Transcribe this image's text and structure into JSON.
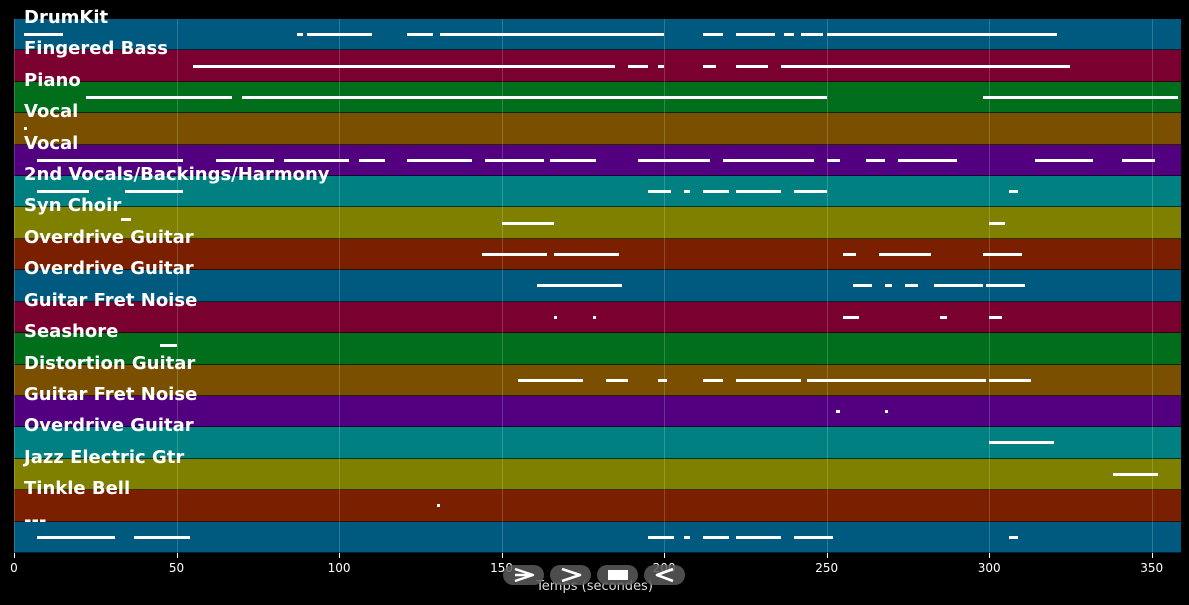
{
  "x_axis": {
    "label": "Temps (secondes)",
    "ticks": [
      "0",
      "50",
      "100",
      "150",
      "200",
      "250",
      "300",
      "350"
    ],
    "tick_values": [
      0,
      50,
      100,
      150,
      200,
      250,
      300,
      350
    ],
    "range": [
      0,
      359
    ]
  },
  "controls": [
    {
      "name": "play-from-start-button",
      "icon": "play-from-start-icon"
    },
    {
      "name": "play-button",
      "icon": "play-icon"
    },
    {
      "name": "stop-button",
      "icon": "stop-icon"
    },
    {
      "name": "rewind-button",
      "icon": "rewind-icon"
    }
  ],
  "tracks": [
    {
      "name": "DrumKit",
      "color": "#005a80",
      "notes": [
        [
          3,
          12
        ],
        [
          87,
          2
        ],
        [
          90,
          20
        ],
        [
          121,
          8
        ],
        [
          131,
          68
        ],
        [
          198,
          2
        ],
        [
          212,
          6
        ],
        [
          222,
          12
        ],
        [
          237,
          3
        ],
        [
          242,
          7
        ],
        [
          250,
          60
        ],
        [
          301,
          20
        ]
      ]
    },
    {
      "name": "Fingered Bass",
      "color": "#7a0030",
      "notes": [
        [
          55,
          60
        ],
        [
          115,
          15
        ],
        [
          130,
          55
        ],
        [
          189,
          6
        ],
        [
          198,
          2
        ],
        [
          212,
          4
        ],
        [
          222,
          10
        ],
        [
          236,
          40
        ],
        [
          276,
          44
        ],
        [
          315,
          10
        ]
      ]
    },
    {
      "name": "Piano",
      "color": "#006e1a",
      "notes": [
        [
          22,
          45
        ],
        [
          70,
          80
        ],
        [
          150,
          70
        ],
        [
          220,
          30
        ],
        [
          298,
          60
        ]
      ]
    },
    {
      "name": "Vocal",
      "color": "#7a5000",
      "notes": [
        [
          3,
          1
        ]
      ]
    },
    {
      "name": "Vocal",
      "color": "#520080",
      "notes": [
        [
          7,
          45
        ],
        [
          62,
          18
        ],
        [
          83,
          20
        ],
        [
          106,
          8
        ],
        [
          121,
          20
        ],
        [
          145,
          18
        ],
        [
          165,
          14
        ],
        [
          192,
          22
        ],
        [
          218,
          28
        ],
        [
          250,
          4
        ],
        [
          262,
          6
        ],
        [
          272,
          18
        ],
        [
          314,
          18
        ],
        [
          341,
          10
        ]
      ]
    },
    {
      "name": "2nd Vocals/Backings/Harmony",
      "color": "#008080",
      "notes": [
        [
          7,
          16
        ],
        [
          34,
          18
        ],
        [
          195,
          7
        ],
        [
          206,
          2
        ],
        [
          212,
          8
        ],
        [
          222,
          14
        ],
        [
          240,
          10
        ],
        [
          306,
          3
        ]
      ]
    },
    {
      "name": "Syn Choir",
      "color": "#808000",
      "notes": [
        [
          150,
          16
        ],
        [
          300,
          5
        ]
      ]
    },
    {
      "name": "Overdrive Guitar",
      "color": "#7a2000",
      "notes": [
        [
          144,
          20
        ],
        [
          166,
          20
        ],
        [
          255,
          4
        ],
        [
          266,
          16
        ],
        [
          298,
          12
        ]
      ]
    },
    {
      "name": "Overdrive Guitar",
      "color": "#005a80",
      "notes": [
        [
          161,
          6
        ],
        [
          167,
          20
        ],
        [
          258,
          6
        ],
        [
          268,
          2
        ],
        [
          274,
          4
        ],
        [
          283,
          15
        ],
        [
          299,
          12
        ]
      ]
    },
    {
      "name": "Guitar Fret Noise",
      "color": "#7a0030",
      "notes": [
        [
          166,
          1
        ],
        [
          178,
          1
        ],
        [
          255,
          5
        ],
        [
          285,
          2
        ],
        [
          300,
          4
        ]
      ]
    },
    {
      "name": "Seashore",
      "color": "#006e1a",
      "notes": []
    },
    {
      "name": "Distortion Guitar",
      "color": "#7a5000",
      "notes": [
        [
          155,
          20
        ],
        [
          182,
          7
        ],
        [
          198,
          3
        ],
        [
          212,
          6
        ],
        [
          222,
          20
        ],
        [
          244,
          26
        ],
        [
          270,
          29
        ],
        [
          300,
          13
        ]
      ]
    },
    {
      "name": "Guitar Fret Noise",
      "color": "#520080",
      "notes": [
        [
          253,
          1
        ],
        [
          268,
          1
        ]
      ]
    },
    {
      "name": "Overdrive Guitar",
      "color": "#008080",
      "notes": [
        [
          300,
          20
        ]
      ]
    },
    {
      "name": "Jazz Electric Gtr",
      "color": "#808000",
      "notes": [
        [
          338,
          14
        ]
      ]
    },
    {
      "name": "Tinkle Bell",
      "color": "#7a2000",
      "notes": [
        [
          130,
          1
        ]
      ]
    },
    {
      "name": "---",
      "color": "#005a80",
      "notes": [
        [
          7,
          24
        ],
        [
          37,
          17
        ],
        [
          195,
          8
        ],
        [
          206,
          2
        ],
        [
          212,
          8
        ],
        [
          222,
          14
        ],
        [
          240,
          12
        ],
        [
          306,
          3
        ]
      ]
    }
  ],
  "stray_marks": [
    {
      "x": 33,
      "row": 6,
      "w": 3
    },
    {
      "x": 45,
      "row": 10,
      "w": 5
    }
  ]
}
